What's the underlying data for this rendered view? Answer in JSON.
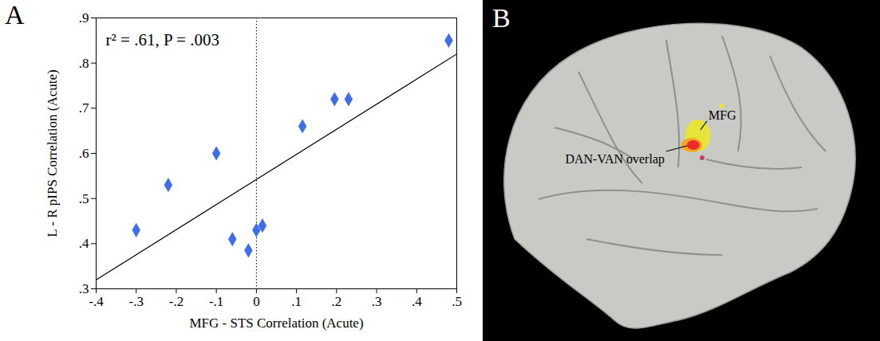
{
  "chart_data": {
    "type": "scatter",
    "panel_label": "A",
    "x_label": "MFG - STS Correlation (Acute)",
    "y_label": "L - R pIPS Correlation (Acute)",
    "annotation": "r² = .61, P = .003",
    "x": [
      -0.3,
      -0.22,
      -0.1,
      -0.06,
      -0.02,
      0.0,
      0.015,
      0.115,
      0.195,
      0.23,
      0.48
    ],
    "values": [
      0.43,
      0.53,
      0.6,
      0.41,
      0.385,
      0.43,
      0.44,
      0.66,
      0.72,
      0.72,
      0.85
    ],
    "color": "#3f6ee8",
    "marker": "diamond",
    "fit_line": {
      "x": [
        -0.4,
        0.5
      ],
      "values": [
        0.32,
        0.82
      ]
    },
    "vline": 0,
    "xlim": [
      -0.4,
      0.5
    ],
    "ylim": [
      0.3,
      0.9
    ],
    "xticks": [
      {
        "value": -0.4,
        "label": "-.4"
      },
      {
        "value": -0.3,
        "label": "-.3"
      },
      {
        "value": -0.2,
        "label": "-.2"
      },
      {
        "value": -0.1,
        "label": "-.1"
      },
      0,
      {
        "value": 0.1,
        "label": ".1"
      },
      {
        "value": 0.2,
        "label": ".2"
      },
      {
        "value": 0.3,
        "label": ".3"
      },
      {
        "value": 0.4,
        "label": ".4"
      },
      {
        "value": 0.5,
        "label": ".5"
      }
    ],
    "yticks": [
      {
        "value": 0.3,
        "label": ".3"
      },
      {
        "value": 0.4,
        "label": ".4"
      },
      {
        "value": 0.5,
        "label": ".5"
      },
      {
        "value": 0.6,
        "label": ".6"
      },
      {
        "value": 0.7,
        "label": ".7"
      },
      {
        "value": 0.8,
        "label": ".8"
      },
      {
        "value": 0.9,
        "label": ".9"
      }
    ],
    "grid": false
  },
  "brain_panel": {
    "panel_label": "B",
    "labels": [
      "MFG",
      "DAN-VAN overlap"
    ]
  }
}
